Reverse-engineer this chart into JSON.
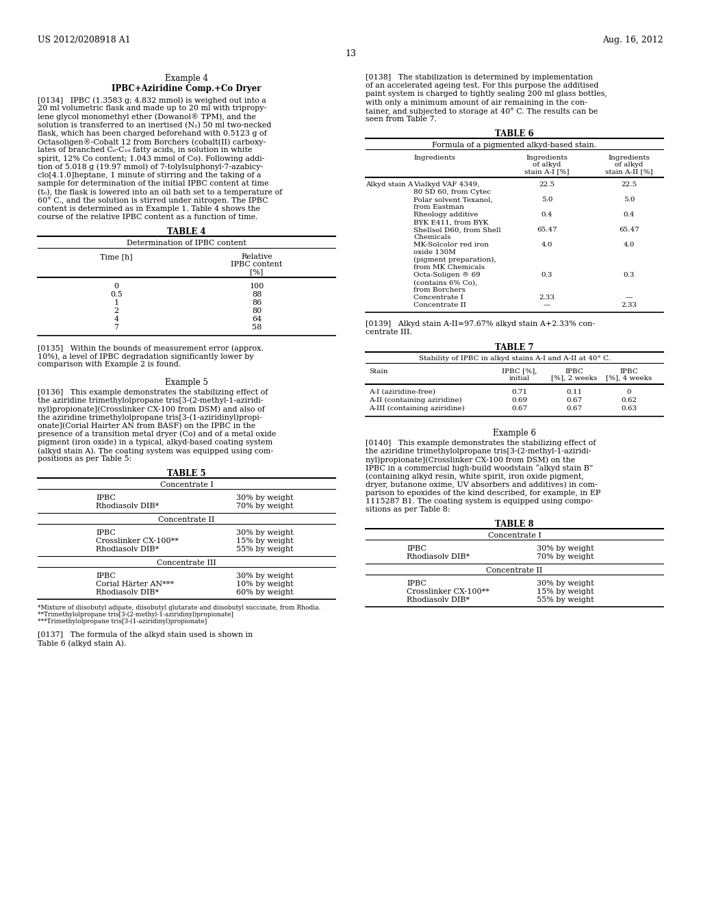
{
  "header_left": "US 2012/0208918 A1",
  "header_right": "Aug. 16, 2012",
  "page_number": "13",
  "background": "#ffffff"
}
